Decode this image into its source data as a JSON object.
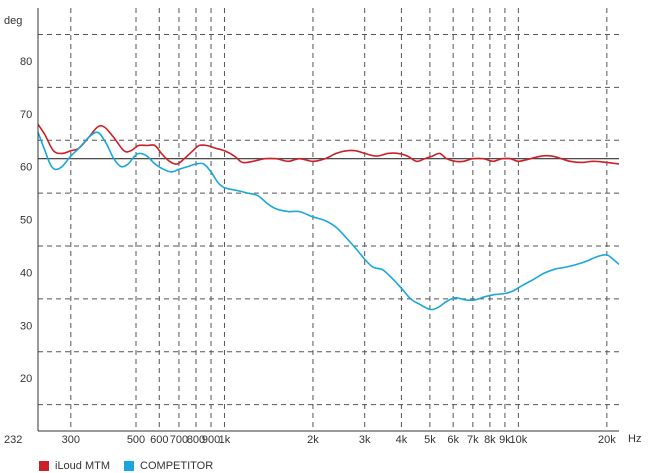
{
  "chart_data": {
    "type": "line",
    "ylabel": "deg",
    "xlabel": "Hz",
    "x_scale": "log",
    "xlim": [
      232,
      22000
    ],
    "ylim": [
      10,
      90
    ],
    "y_ticks": [
      20,
      30,
      40,
      50,
      60,
      70,
      80
    ],
    "y_gridlines": [
      15,
      25,
      35,
      45,
      55,
      65,
      75,
      85
    ],
    "x_ticks": [
      {
        "value": 232,
        "label": "232"
      },
      {
        "value": 300,
        "label": "300"
      },
      {
        "value": 500,
        "label": "500"
      },
      {
        "value": 600,
        "label": "600"
      },
      {
        "value": 700,
        "label": "700"
      },
      {
        "value": 800,
        "label": "800"
      },
      {
        "value": 900,
        "label": "900"
      },
      {
        "value": 1000,
        "label": "1k"
      },
      {
        "value": 2000,
        "label": "2k"
      },
      {
        "value": 3000,
        "label": "3k"
      },
      {
        "value": 4000,
        "label": "4k"
      },
      {
        "value": 5000,
        "label": "5k"
      },
      {
        "value": 6000,
        "label": "6k"
      },
      {
        "value": 7000,
        "label": "7k"
      },
      {
        "value": 8000,
        "label": "8k"
      },
      {
        "value": 9000,
        "label": "9k"
      },
      {
        "value": 10000,
        "label": "10k"
      },
      {
        "value": 20000,
        "label": "20k"
      }
    ],
    "reference_line": {
      "y": 61.5,
      "color": "#333333"
    },
    "grid": true,
    "legend_position": "bottom-left",
    "series": [
      {
        "name": "iLoud MTM",
        "color": "#cc1f27",
        "points": [
          [
            232,
            68
          ],
          [
            245,
            66
          ],
          [
            262,
            63
          ],
          [
            280,
            62.5
          ],
          [
            300,
            63
          ],
          [
            320,
            63.5
          ],
          [
            345,
            65.5
          ],
          [
            370,
            67.5
          ],
          [
            390,
            67.5
          ],
          [
            420,
            65.5
          ],
          [
            455,
            63
          ],
          [
            480,
            63
          ],
          [
            510,
            64
          ],
          [
            545,
            64
          ],
          [
            580,
            64
          ],
          [
            610,
            62.5
          ],
          [
            650,
            61
          ],
          [
            690,
            60.5
          ],
          [
            730,
            61.5
          ],
          [
            780,
            63
          ],
          [
            820,
            64
          ],
          [
            870,
            64
          ],
          [
            930,
            63.5
          ],
          [
            1000,
            63
          ],
          [
            1080,
            62
          ],
          [
            1150,
            60.8
          ],
          [
            1250,
            61
          ],
          [
            1370,
            61.5
          ],
          [
            1500,
            61.5
          ],
          [
            1650,
            61
          ],
          [
            1800,
            61.5
          ],
          [
            2000,
            61
          ],
          [
            2200,
            61.5
          ],
          [
            2400,
            62.5
          ],
          [
            2600,
            63
          ],
          [
            2800,
            63
          ],
          [
            3000,
            62.5
          ],
          [
            3300,
            62
          ],
          [
            3600,
            62.5
          ],
          [
            3900,
            62.5
          ],
          [
            4200,
            62
          ],
          [
            4500,
            61
          ],
          [
            4800,
            61.5
          ],
          [
            5100,
            62
          ],
          [
            5400,
            62.5
          ],
          [
            5700,
            61.5
          ],
          [
            6100,
            61
          ],
          [
            6500,
            61
          ],
          [
            7000,
            61.5
          ],
          [
            7600,
            61.5
          ],
          [
            8200,
            61
          ],
          [
            8800,
            61.5
          ],
          [
            9400,
            61.5
          ],
          [
            10000,
            61
          ],
          [
            11000,
            61.5
          ],
          [
            12000,
            62
          ],
          [
            13000,
            62
          ],
          [
            14000,
            61.5
          ],
          [
            15000,
            61
          ],
          [
            16500,
            60.8
          ],
          [
            18000,
            61
          ],
          [
            20000,
            60.8
          ],
          [
            22000,
            60.5
          ]
        ]
      },
      {
        "name": "COMPETITOR",
        "color": "#1aa7dd",
        "points": [
          [
            232,
            66.5
          ],
          [
            245,
            63
          ],
          [
            255,
            60.5
          ],
          [
            265,
            59.5
          ],
          [
            280,
            60
          ],
          [
            300,
            62
          ],
          [
            320,
            63.5
          ],
          [
            345,
            65.5
          ],
          [
            370,
            66.5
          ],
          [
            395,
            64.5
          ],
          [
            420,
            61.5
          ],
          [
            445,
            60
          ],
          [
            470,
            60.5
          ],
          [
            495,
            62
          ],
          [
            515,
            62.5
          ],
          [
            545,
            62
          ],
          [
            580,
            60.5
          ],
          [
            620,
            59.5
          ],
          [
            660,
            59
          ],
          [
            700,
            59.5
          ],
          [
            750,
            60
          ],
          [
            800,
            60.5
          ],
          [
            850,
            60.5
          ],
          [
            900,
            59
          ],
          [
            950,
            57
          ],
          [
            1000,
            56
          ],
          [
            1100,
            55.5
          ],
          [
            1200,
            55
          ],
          [
            1300,
            54.5
          ],
          [
            1400,
            53
          ],
          [
            1500,
            52
          ],
          [
            1650,
            51.5
          ],
          [
            1800,
            51.5
          ],
          [
            2000,
            50.5
          ],
          [
            2200,
            49.8
          ],
          [
            2400,
            48.5
          ],
          [
            2600,
            46.5
          ],
          [
            2800,
            44.5
          ],
          [
            3000,
            42.5
          ],
          [
            3200,
            41
          ],
          [
            3450,
            40.5
          ],
          [
            3700,
            39
          ],
          [
            4000,
            37
          ],
          [
            4300,
            35
          ],
          [
            4600,
            34
          ],
          [
            5000,
            33
          ],
          [
            5300,
            33.3
          ],
          [
            5700,
            34.5
          ],
          [
            6100,
            35.2
          ],
          [
            6600,
            34.8
          ],
          [
            7100,
            34.8
          ],
          [
            7700,
            35.4
          ],
          [
            8300,
            35.8
          ],
          [
            9000,
            36
          ],
          [
            9600,
            36.5
          ],
          [
            10300,
            37.5
          ],
          [
            11200,
            38.6
          ],
          [
            12200,
            39.8
          ],
          [
            13300,
            40.6
          ],
          [
            14500,
            41
          ],
          [
            15800,
            41.5
          ],
          [
            17200,
            42.2
          ],
          [
            18600,
            43
          ],
          [
            20000,
            43.3
          ],
          [
            21000,
            42.5
          ],
          [
            22000,
            41.5
          ]
        ]
      }
    ]
  }
}
